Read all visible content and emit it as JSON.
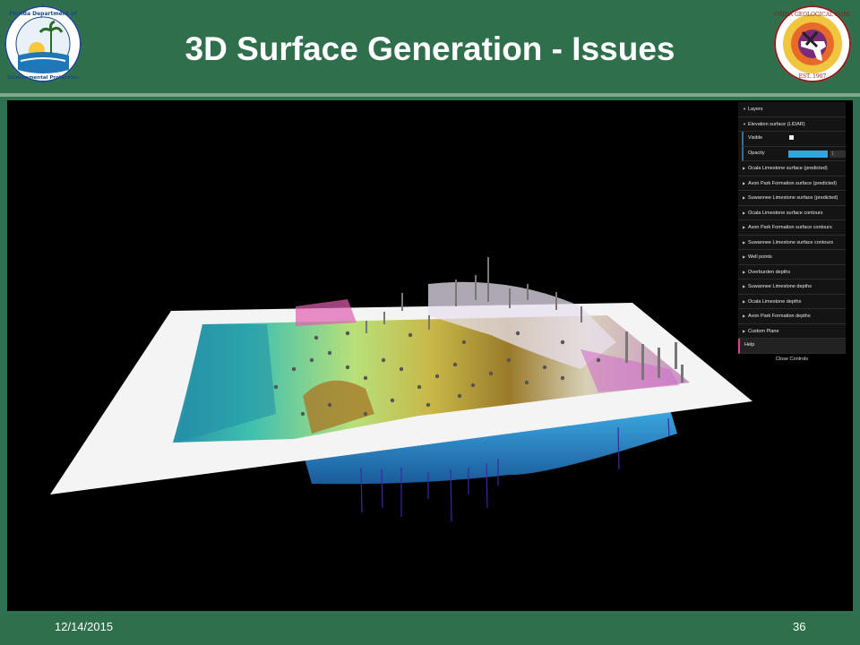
{
  "slide": {
    "title": "3D Surface Generation - Issues",
    "date": "12/14/2015",
    "page_number": "36"
  },
  "logos": {
    "left": {
      "icon": "fdep-seal-icon",
      "text": "Florida Department of Environmental Protection"
    },
    "right": {
      "icon": "fgs-seal-icon",
      "text": "FLORIDA GEOLOGICAL SURVEY",
      "est": "EST.",
      "year": "1907"
    }
  },
  "controls": {
    "layers_label": "Layers",
    "elevation_label": "Elevation surface (LIDAR)",
    "visible_label": "Visible",
    "opacity_label": "Opacity",
    "opacity_value": "1",
    "items": [
      "Ocala Limestone surface (predicted)",
      "Avon Park Formation surface (predicted)",
      "Suwannee Limestone surface (predicted)",
      "Ocala Limestone surface contours",
      "Avon Park Formation surface contours",
      "Suwannee Limestone surface contours",
      "Well points",
      "Overburden depths",
      "Suwannee Limestone depths",
      "Ocala Limestone depths",
      "Avon Park Formation depths",
      "Custom Plane"
    ],
    "help_label": "Help",
    "close_label": "Close Controls"
  },
  "colors": {
    "header_green": "#2f6f4c",
    "viewport_bg": "#000000",
    "panel_bg": "#141414",
    "opacity_blue": "#2fa6de",
    "help_accent": "#e0418f"
  }
}
